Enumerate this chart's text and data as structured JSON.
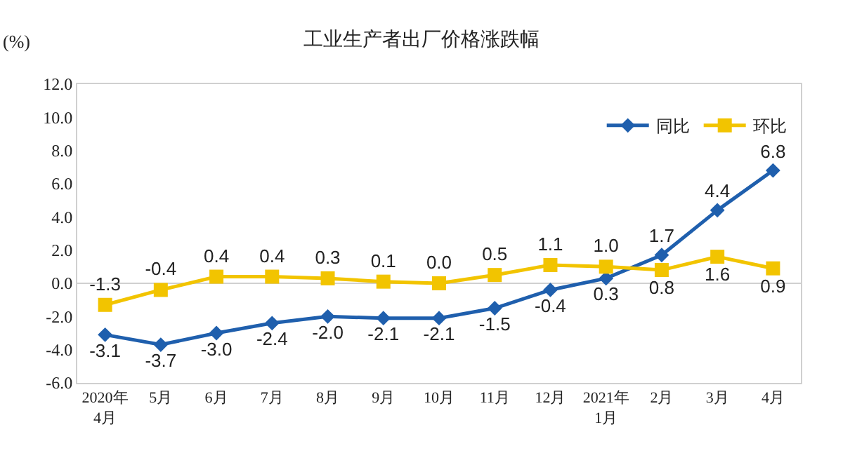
{
  "chart_data": {
    "type": "line",
    "title": "工业生产者出厂价格涨跌幅",
    "ylabel": "(%)",
    "categories": [
      "2020年\n4月",
      "5月",
      "6月",
      "7月",
      "8月",
      "9月",
      "10月",
      "11月",
      "12月",
      "2021年\n1月",
      "2月",
      "3月",
      "4月"
    ],
    "series": [
      {
        "name": "同比",
        "color": "#1f5fad",
        "marker": "diamond",
        "values": [
          -3.1,
          -3.7,
          -3.0,
          -2.4,
          -2.0,
          -2.1,
          -2.1,
          -1.5,
          -0.4,
          0.3,
          1.7,
          4.4,
          6.8
        ],
        "value_labels": [
          "-3.1",
          "-3.7",
          "-3.0",
          "-2.4",
          "-2.0",
          "-2.1",
          "-2.1",
          "-1.5",
          "-0.4",
          "0.3",
          "1.7",
          "4.4",
          "6.8"
        ]
      },
      {
        "name": "环比",
        "color": "#f2c400",
        "marker": "square",
        "values": [
          -1.3,
          -0.4,
          0.4,
          0.4,
          0.3,
          0.1,
          0.0,
          0.5,
          1.1,
          1.0,
          0.8,
          1.6,
          0.9
        ],
        "value_labels": [
          "-1.3",
          "-0.4",
          "0.4",
          "0.4",
          "0.3",
          "0.1",
          "0.0",
          "0.5",
          "1.1",
          "1.0",
          "0.8",
          "1.6",
          "0.9"
        ]
      }
    ],
    "ylim": [
      -6,
      12
    ],
    "yticks": [
      {
        "value": -6,
        "label": "-6.0"
      },
      {
        "value": -4,
        "label": "-4.0"
      },
      {
        "value": -2,
        "label": "-2.0"
      },
      {
        "value": 0,
        "label": "0.0"
      },
      {
        "value": 2,
        "label": "2.0"
      },
      {
        "value": 4,
        "label": "4.0"
      },
      {
        "value": 6,
        "label": "6.0"
      },
      {
        "value": 8,
        "label": "8.0"
      },
      {
        "value": 10,
        "label": "10.0"
      },
      {
        "value": 12,
        "label": "12.0"
      }
    ],
    "legend": "top right",
    "line_style": "solid"
  }
}
